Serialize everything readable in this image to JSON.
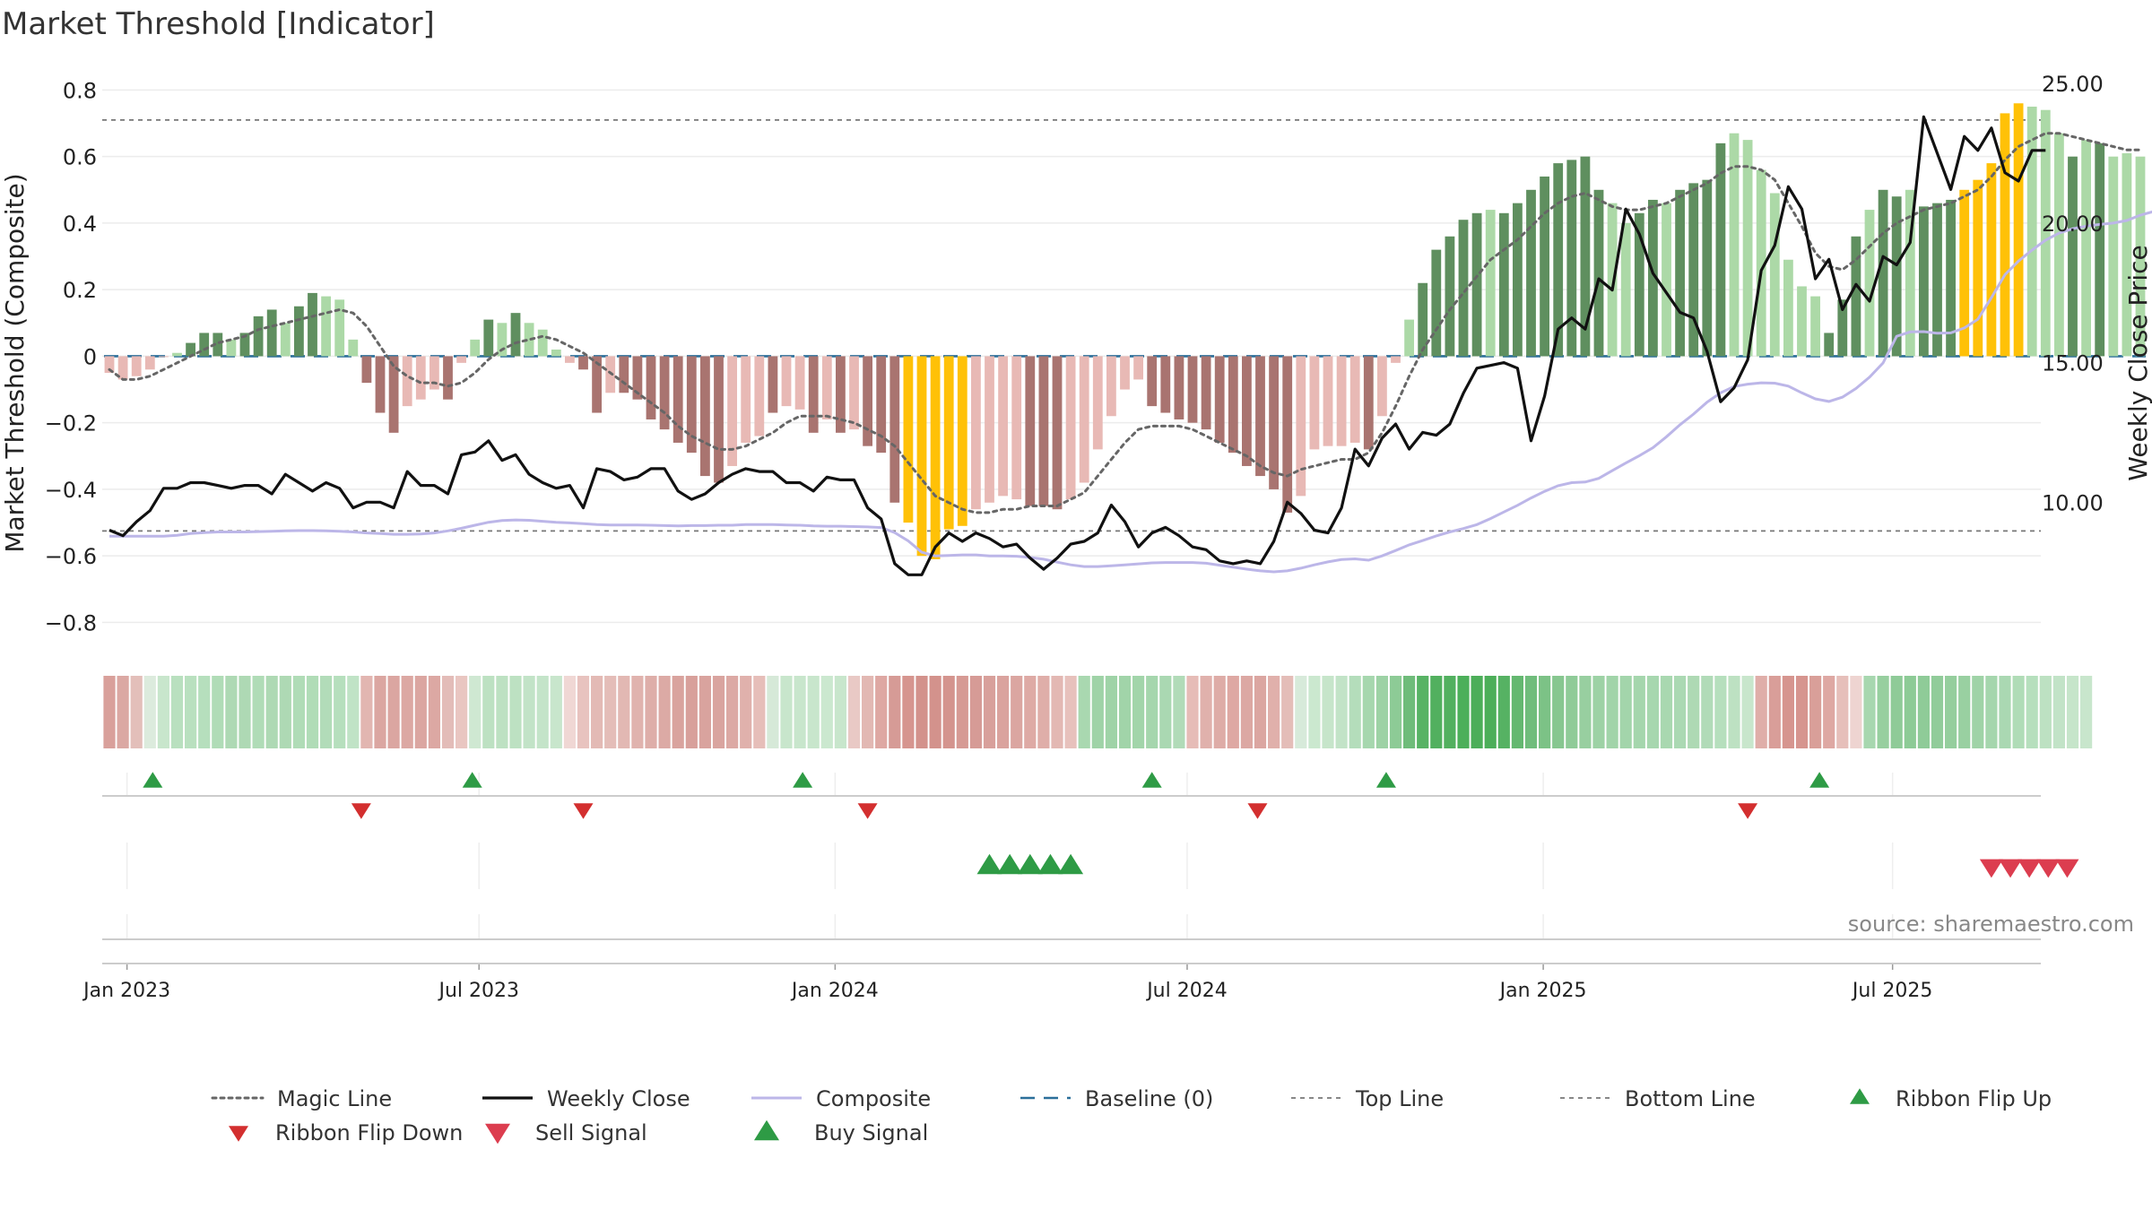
{
  "chart_data": {
    "type": "bar",
    "title": "Market Threshold [Indicator]",
    "ylabel_left": "Market Threshold (Composite)",
    "ylabel_right": "Weekly Close Price",
    "source": "source: sharemaestro.com",
    "ylim_left": [
      -0.85,
      0.82
    ],
    "ylim_right": [
      5.1,
      25.0
    ],
    "left_ticks": [
      "0.8",
      "0.6",
      "0.4",
      "0.2",
      "0",
      "−0.2",
      "−0.4",
      "−0.6",
      "−0.8"
    ],
    "left_tick_values": [
      0.8,
      0.6,
      0.4,
      0.2,
      0,
      -0.2,
      -0.4,
      -0.6,
      -0.8
    ],
    "right_ticks": [
      "25.00",
      "20.00",
      "15.00",
      "10.00"
    ],
    "right_tick_values": [
      25,
      20,
      15,
      10
    ],
    "x_start": "2022-12-23",
    "x_ticks": [
      {
        "label": "Jan 2023",
        "week": 1.3
      },
      {
        "label": "Jul 2023",
        "week": 27.3
      },
      {
        "label": "Jan 2024",
        "week": 53.6
      },
      {
        "label": "Jul 2024",
        "week": 79.6
      },
      {
        "label": "Jan 2025",
        "week": 105.9
      },
      {
        "label": "Jul 2025",
        "week": 131.7
      }
    ],
    "top_line": 0.71,
    "bottom_line": -0.525,
    "histogram": [
      -0.05,
      -0.07,
      -0.06,
      -0.04,
      0.0,
      0.01,
      0.04,
      0.07,
      0.07,
      0.05,
      0.07,
      0.12,
      0.14,
      0.1,
      0.15,
      0.19,
      0.18,
      0.17,
      0.05,
      -0.08,
      -0.17,
      -0.23,
      -0.15,
      -0.13,
      -0.1,
      -0.13,
      -0.02,
      0.05,
      0.11,
      0.1,
      0.13,
      0.1,
      0.08,
      0.02,
      -0.02,
      -0.04,
      -0.17,
      -0.11,
      -0.11,
      -0.13,
      -0.19,
      -0.22,
      -0.26,
      -0.29,
      -0.36,
      -0.38,
      -0.33,
      -0.26,
      -0.24,
      -0.17,
      -0.15,
      -0.16,
      -0.23,
      -0.19,
      -0.23,
      -0.22,
      -0.27,
      -0.29,
      -0.44,
      -0.5,
      -0.6,
      -0.61,
      -0.52,
      -0.51,
      -0.46,
      -0.44,
      -0.42,
      -0.43,
      -0.45,
      -0.45,
      -0.46,
      -0.43,
      -0.38,
      -0.28,
      -0.18,
      -0.1,
      -0.07,
      -0.15,
      -0.17,
      -0.19,
      -0.2,
      -0.22,
      -0.26,
      -0.29,
      -0.33,
      -0.36,
      -0.4,
      -0.47,
      -0.42,
      -0.28,
      -0.27,
      -0.27,
      -0.26,
      -0.28,
      -0.18,
      -0.02,
      0.11,
      0.22,
      0.32,
      0.36,
      0.41,
      0.43,
      0.44,
      0.43,
      0.46,
      0.5,
      0.54,
      0.58,
      0.59,
      0.6,
      0.5,
      0.46,
      0.4,
      0.43,
      0.47,
      0.46,
      0.5,
      0.52,
      0.53,
      0.64,
      0.67,
      0.65,
      0.56,
      0.49,
      0.29,
      0.21,
      0.18,
      0.07,
      0.17,
      0.36,
      0.44,
      0.5,
      0.48,
      0.5,
      0.45,
      0.46,
      0.47,
      0.5,
      0.53,
      0.58,
      0.73,
      0.76,
      0.75,
      0.74,
      0.67,
      0.6,
      0.65,
      0.64,
      0.6,
      0.61,
      0.6
    ],
    "bar_style": [
      "lr",
      "lr",
      "lr",
      "lr",
      "lr",
      "lg",
      "dg",
      "dg",
      "dg",
      "lg",
      "dg",
      "dg",
      "dg",
      "lg",
      "dg",
      "dg",
      "lg",
      "lg",
      "lg",
      "dr",
      "dr",
      "dr",
      "lr",
      "lr",
      "lr",
      "dr",
      "lr",
      "lg",
      "dg",
      "lg",
      "dg",
      "lg",
      "lg",
      "lg",
      "lr",
      "dr",
      "dr",
      "lr",
      "dr",
      "dr",
      "dr",
      "dr",
      "dr",
      "dr",
      "dr",
      "dr",
      "lr",
      "lr",
      "lr",
      "dr",
      "lr",
      "lr",
      "dr",
      "lr",
      "dr",
      "lr",
      "dr",
      "dr",
      "dr",
      "y",
      "y",
      "y",
      "y",
      "y",
      "lr",
      "lr",
      "lr",
      "lr",
      "dr",
      "dr",
      "dr",
      "lr",
      "lr",
      "lr",
      "lr",
      "lr",
      "lr",
      "dr",
      "dr",
      "dr",
      "dr",
      "dr",
      "dr",
      "dr",
      "dr",
      "dr",
      "dr",
      "dr",
      "lr",
      "lr",
      "lr",
      "lr",
      "lr",
      "dr",
      "lr",
      "lr",
      "lg",
      "dg",
      "dg",
      "dg",
      "dg",
      "dg",
      "lg",
      "dg",
      "dg",
      "dg",
      "dg",
      "dg",
      "dg",
      "dg",
      "dg",
      "lg",
      "lg",
      "dg",
      "dg",
      "lg",
      "dg",
      "dg",
      "dg",
      "dg",
      "lg",
      "lg",
      "lg",
      "lg",
      "lg",
      "lg",
      "lg",
      "dg",
      "dg",
      "dg",
      "lg",
      "dg",
      "dg",
      "lg",
      "dg",
      "dg",
      "dg",
      "y",
      "y",
      "y",
      "y",
      "y",
      "lg",
      "lg",
      "lg",
      "dg",
      "lg",
      "dg"
    ],
    "magic_line": [
      -0.04,
      -0.07,
      -0.07,
      -0.06,
      -0.04,
      -0.02,
      0.0,
      0.02,
      0.04,
      0.05,
      0.06,
      0.08,
      0.09,
      0.1,
      0.11,
      0.12,
      0.13,
      0.14,
      0.13,
      0.09,
      0.03,
      -0.03,
      -0.06,
      -0.08,
      -0.08,
      -0.09,
      -0.08,
      -0.05,
      -0.01,
      0.02,
      0.04,
      0.05,
      0.06,
      0.05,
      0.03,
      0.01,
      -0.02,
      -0.05,
      -0.08,
      -0.11,
      -0.14,
      -0.17,
      -0.21,
      -0.24,
      -0.26,
      -0.28,
      -0.28,
      -0.27,
      -0.25,
      -0.23,
      -0.2,
      -0.18,
      -0.18,
      -0.18,
      -0.19,
      -0.2,
      -0.22,
      -0.24,
      -0.27,
      -0.32,
      -0.37,
      -0.42,
      -0.44,
      -0.46,
      -0.47,
      -0.47,
      -0.46,
      -0.46,
      -0.45,
      -0.45,
      -0.45,
      -0.43,
      -0.41,
      -0.36,
      -0.31,
      -0.26,
      -0.22,
      -0.21,
      -0.21,
      -0.21,
      -0.22,
      -0.24,
      -0.26,
      -0.28,
      -0.3,
      -0.33,
      -0.35,
      -0.36,
      -0.34,
      -0.33,
      -0.32,
      -0.31,
      -0.31,
      -0.29,
      -0.23,
      -0.15,
      -0.06,
      0.02,
      0.08,
      0.14,
      0.19,
      0.24,
      0.29,
      0.32,
      0.35,
      0.39,
      0.43,
      0.46,
      0.48,
      0.49,
      0.47,
      0.45,
      0.44,
      0.44,
      0.45,
      0.46,
      0.48,
      0.5,
      0.52,
      0.55,
      0.57,
      0.57,
      0.56,
      0.53,
      0.46,
      0.39,
      0.31,
      0.27,
      0.26,
      0.29,
      0.33,
      0.37,
      0.4,
      0.42,
      0.44,
      0.45,
      0.46,
      0.48,
      0.5,
      0.54,
      0.59,
      0.63,
      0.65,
      0.67,
      0.67,
      0.66,
      0.65,
      0.64,
      0.63,
      0.62,
      0.62
    ],
    "composite": [
      -0.541,
      -0.541,
      -0.541,
      -0.541,
      -0.541,
      -0.538,
      -0.533,
      -0.53,
      -0.528,
      -0.528,
      -0.528,
      -0.527,
      -0.526,
      -0.525,
      -0.524,
      -0.524,
      -0.525,
      -0.526,
      -0.528,
      -0.531,
      -0.533,
      -0.535,
      -0.535,
      -0.534,
      -0.531,
      -0.525,
      -0.517,
      -0.508,
      -0.499,
      -0.494,
      -0.492,
      -0.493,
      -0.496,
      -0.499,
      -0.501,
      -0.503,
      -0.506,
      -0.507,
      -0.507,
      -0.507,
      -0.508,
      -0.509,
      -0.51,
      -0.509,
      -0.509,
      -0.508,
      -0.508,
      -0.506,
      -0.506,
      -0.506,
      -0.507,
      -0.508,
      -0.51,
      -0.511,
      -0.511,
      -0.512,
      -0.513,
      -0.515,
      -0.53,
      -0.555,
      -0.589,
      -0.6,
      -0.599,
      -0.597,
      -0.597,
      -0.6,
      -0.6,
      -0.601,
      -0.605,
      -0.61,
      -0.619,
      -0.627,
      -0.632,
      -0.632,
      -0.63,
      -0.627,
      -0.624,
      -0.621,
      -0.62,
      -0.62,
      -0.62,
      -0.622,
      -0.628,
      -0.634,
      -0.64,
      -0.645,
      -0.648,
      -0.645,
      -0.637,
      -0.627,
      -0.618,
      -0.611,
      -0.609,
      -0.613,
      -0.6,
      -0.584,
      -0.567,
      -0.554,
      -0.54,
      -0.528,
      -0.518,
      -0.506,
      -0.488,
      -0.468,
      -0.448,
      -0.426,
      -0.406,
      -0.389,
      -0.38,
      -0.378,
      -0.367,
      -0.344,
      -0.321,
      -0.299,
      -0.275,
      -0.242,
      -0.206,
      -0.174,
      -0.138,
      -0.11,
      -0.091,
      -0.084,
      -0.08,
      -0.081,
      -0.09,
      -0.11,
      -0.128,
      -0.136,
      -0.123,
      -0.097,
      -0.063,
      -0.02,
      0.06,
      0.073,
      0.074,
      0.069,
      0.07,
      0.085,
      0.111,
      0.176,
      0.245,
      0.286,
      0.319,
      0.349,
      0.37,
      0.383,
      0.391,
      0.396,
      0.4,
      0.408,
      0.424,
      0.435
    ],
    "weekly_close": [
      9.0,
      8.8,
      9.3,
      9.7,
      10.5,
      10.5,
      10.7,
      10.7,
      10.6,
      10.5,
      10.6,
      10.6,
      10.3,
      11.0,
      10.7,
      10.4,
      10.7,
      10.5,
      9.8,
      10.0,
      10.0,
      9.8,
      11.1,
      10.6,
      10.6,
      10.3,
      11.7,
      11.8,
      12.2,
      11.5,
      11.7,
      11.0,
      10.7,
      10.5,
      10.6,
      9.8,
      11.2,
      11.1,
      10.8,
      10.9,
      11.2,
      11.2,
      10.4,
      10.1,
      10.3,
      10.7,
      11.0,
      11.2,
      11.1,
      11.1,
      10.7,
      10.7,
      10.4,
      10.9,
      10.8,
      10.8,
      9.8,
      9.4,
      7.8,
      7.4,
      7.4,
      8.4,
      8.9,
      8.6,
      8.9,
      8.7,
      8.4,
      8.5,
      8.0,
      7.6,
      8.0,
      8.5,
      8.6,
      8.9,
      9.9,
      9.3,
      8.4,
      8.9,
      9.1,
      8.8,
      8.4,
      8.3,
      7.9,
      7.8,
      7.9,
      7.8,
      8.6,
      10.0,
      9.6,
      9.0,
      8.9,
      9.8,
      11.9,
      11.3,
      12.3,
      12.8,
      11.9,
      12.5,
      12.4,
      12.8,
      13.9,
      14.8,
      14.9,
      15.0,
      14.8,
      12.2,
      13.8,
      16.2,
      16.6,
      16.2,
      18.0,
      17.6,
      20.5,
      19.6,
      18.2,
      17.5,
      16.8,
      16.6,
      15.4,
      13.6,
      14.1,
      15.1,
      18.3,
      19.2,
      21.3,
      20.5,
      18.0,
      18.7,
      16.9,
      17.8,
      17.2,
      18.8,
      18.5,
      19.3,
      23.8,
      22.5,
      21.2,
      23.1,
      22.6,
      23.4,
      21.8,
      21.5,
      22.6,
      22.6
    ],
    "ribbon_colors": [
      "#d9a09b",
      "#dba8a3",
      "#e3bfba",
      "#dcebdd",
      "#c8e6cc",
      "#b9e0bf",
      "#b9e0bf",
      "#b6dfbd",
      "#b0dcb7",
      "#aed9b4",
      "#aed9b4",
      "#b0dcb7",
      "#aed9b4",
      "#aed9b4",
      "#b0dcb7",
      "#b0dcb7",
      "#b2dcb9",
      "#b6dfbd",
      "#c0e3c6",
      "#e2b6b1",
      "#dba6a1",
      "#dba6a1",
      "#dca8a3",
      "#dba6a1",
      "#dca8a3",
      "#e3bcb8",
      "#e9c6c1",
      "#cfe8d2",
      "#bde1c2",
      "#bde1c2",
      "#bde1c2",
      "#c2e3c7",
      "#c4e4c9",
      "#c8e6cc",
      "#f0d7d4",
      "#e8c3bf",
      "#e3bab5",
      "#e4bdb8",
      "#e2b8b3",
      "#e0b3ae",
      "#deaea9",
      "#dcaaa5",
      "#d9a39e",
      "#d8a09b",
      "#d9a39e",
      "#d9a49f",
      "#dca9a4",
      "#e0b1ac",
      "#e6beb9",
      "#d6e9d8",
      "#c8e6cc",
      "#c8e6cc",
      "#c8e6cc",
      "#cbe8cf",
      "#c8e6cc",
      "#e9c9c5",
      "#e2b8b3",
      "#dea8a3",
      "#d69b96",
      "#d6958f",
      "#d3928c",
      "#d3928c",
      "#d4948e",
      "#d69a94",
      "#d69b96",
      "#d8a09b",
      "#daa39e",
      "#dba6a1",
      "#deaaa5",
      "#dfaea9",
      "#e3b8b3",
      "#e7c1bc",
      "#a9d8b0",
      "#9fd3a7",
      "#9fd3a7",
      "#a1d4a9",
      "#a2d5aa",
      "#a5d6ad",
      "#aad8b2",
      "#b1dbb8",
      "#e6bcb7",
      "#e0b1ac",
      "#deaca7",
      "#dea8a3",
      "#dca8a3",
      "#dba6a1",
      "#e0b0ab",
      "#e4bdb8",
      "#d7eada",
      "#cbe8cf",
      "#c6e5ca",
      "#c2e3c7",
      "#b4ddbb",
      "#a6d7ae",
      "#9dd2a5",
      "#8dcb96",
      "#6fbc7a",
      "#58b365",
      "#52b05f",
      "#52b05f",
      "#4caf5a",
      "#4cae59",
      "#4cae59",
      "#56b263",
      "#64b870",
      "#70bd7c",
      "#7cc286",
      "#87c790",
      "#8fcb98",
      "#98cfa0",
      "#9dd2a5",
      "#a1d4a9",
      "#a3d5ab",
      "#a5d6ad",
      "#a7d7af",
      "#a9d8b0",
      "#abd9b3",
      "#aed9b4",
      "#b1dbb8",
      "#b6dfbd",
      "#bde1c2",
      "#c8e6cc",
      "#dfaea9",
      "#d99e99",
      "#d6958f",
      "#d6958f",
      "#d99f99",
      "#dea8a3",
      "#e6bfba",
      "#eed4d1",
      "#a7d7af",
      "#97cf9f",
      "#8fcb98",
      "#8dcb96",
      "#8fcb98",
      "#91cc9a",
      "#95ce9d",
      "#99d0a1",
      "#9fd3a7",
      "#a5d6ad",
      "#aad8b2",
      "#b0dcb7",
      "#b6dfbd",
      "#bde1c2",
      "#c2e3c7",
      "#c6e5ca",
      "#c8e6cc"
    ],
    "ribbon_flip_up": [
      3.2,
      26.8,
      51.2,
      77.0,
      94.3,
      126.3
    ],
    "ribbon_flip_down": [
      18.6,
      35.0,
      56.0,
      84.8,
      121.0
    ],
    "buy_signals": [
      65.0,
      66.5,
      68.0,
      69.5,
      71.0
    ],
    "sell_signals": [
      139.0,
      140.4,
      141.8,
      143.2,
      144.6
    ],
    "legend": [
      {
        "label": "Magic Line",
        "kind": "dotted"
      },
      {
        "label": "Weekly Close",
        "kind": "solid"
      },
      {
        "label": "Composite",
        "kind": "composite"
      },
      {
        "label": "Baseline (0)",
        "kind": "dashed"
      },
      {
        "label": "Top Line",
        "kind": "thin-dashed"
      },
      {
        "label": "Bottom Line",
        "kind": "thin-dashed"
      },
      {
        "label": "Ribbon Flip Up",
        "kind": "tri-up"
      },
      {
        "label": "Ribbon Flip Down",
        "kind": "tri-down"
      },
      {
        "label": "Sell Signal",
        "kind": "sell"
      },
      {
        "label": "Buy Signal",
        "kind": "buy"
      }
    ],
    "colors": {
      "bar_dark_green": "#5f8f5f",
      "bar_light_green": "#acd9a7",
      "bar_dark_red": "#a97470",
      "bar_light_red": "#e8b9b5",
      "bar_yellow": "#ffc107",
      "magic_line": "#666666",
      "weekly_close": "#111111",
      "composite": "#bcb6e8",
      "baseline": "#2b6f9a",
      "ref_lines": "#777777",
      "flip_up": "#2e9b45",
      "flip_down": "#d32f2f",
      "sell": "#dc3d4f",
      "buy": "#2e9b45"
    }
  }
}
